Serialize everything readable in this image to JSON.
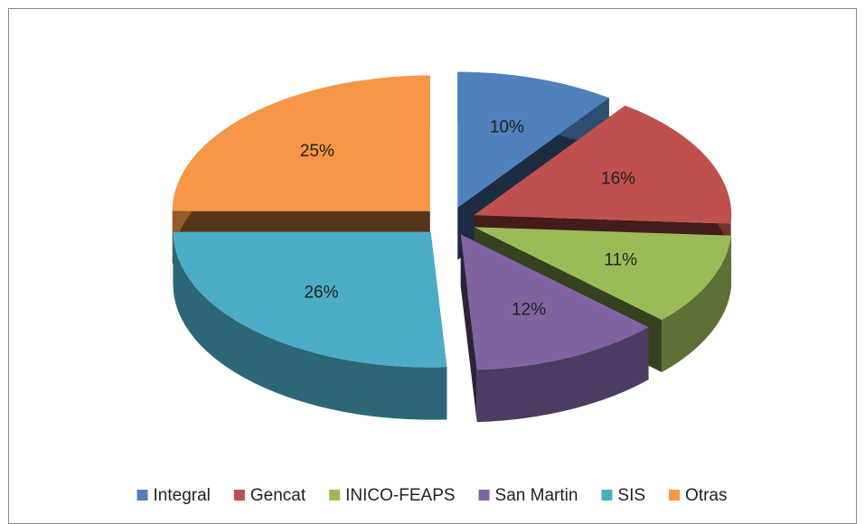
{
  "chart_data": {
    "type": "pie",
    "categories": [
      "Integral",
      "Gencat",
      "INICO-FEAPS",
      "San Martin",
      "SIS",
      "Otras"
    ],
    "values": [
      10,
      16,
      11,
      12,
      26,
      25
    ],
    "value_labels": [
      "10%",
      "16%",
      "11%",
      "12%",
      "26%",
      "25%"
    ],
    "colors": [
      "#4f81bd",
      "#c0504d",
      "#9bbb59",
      "#8064a2",
      "#4bacc6",
      "#f79646"
    ],
    "legend": "bottom"
  }
}
